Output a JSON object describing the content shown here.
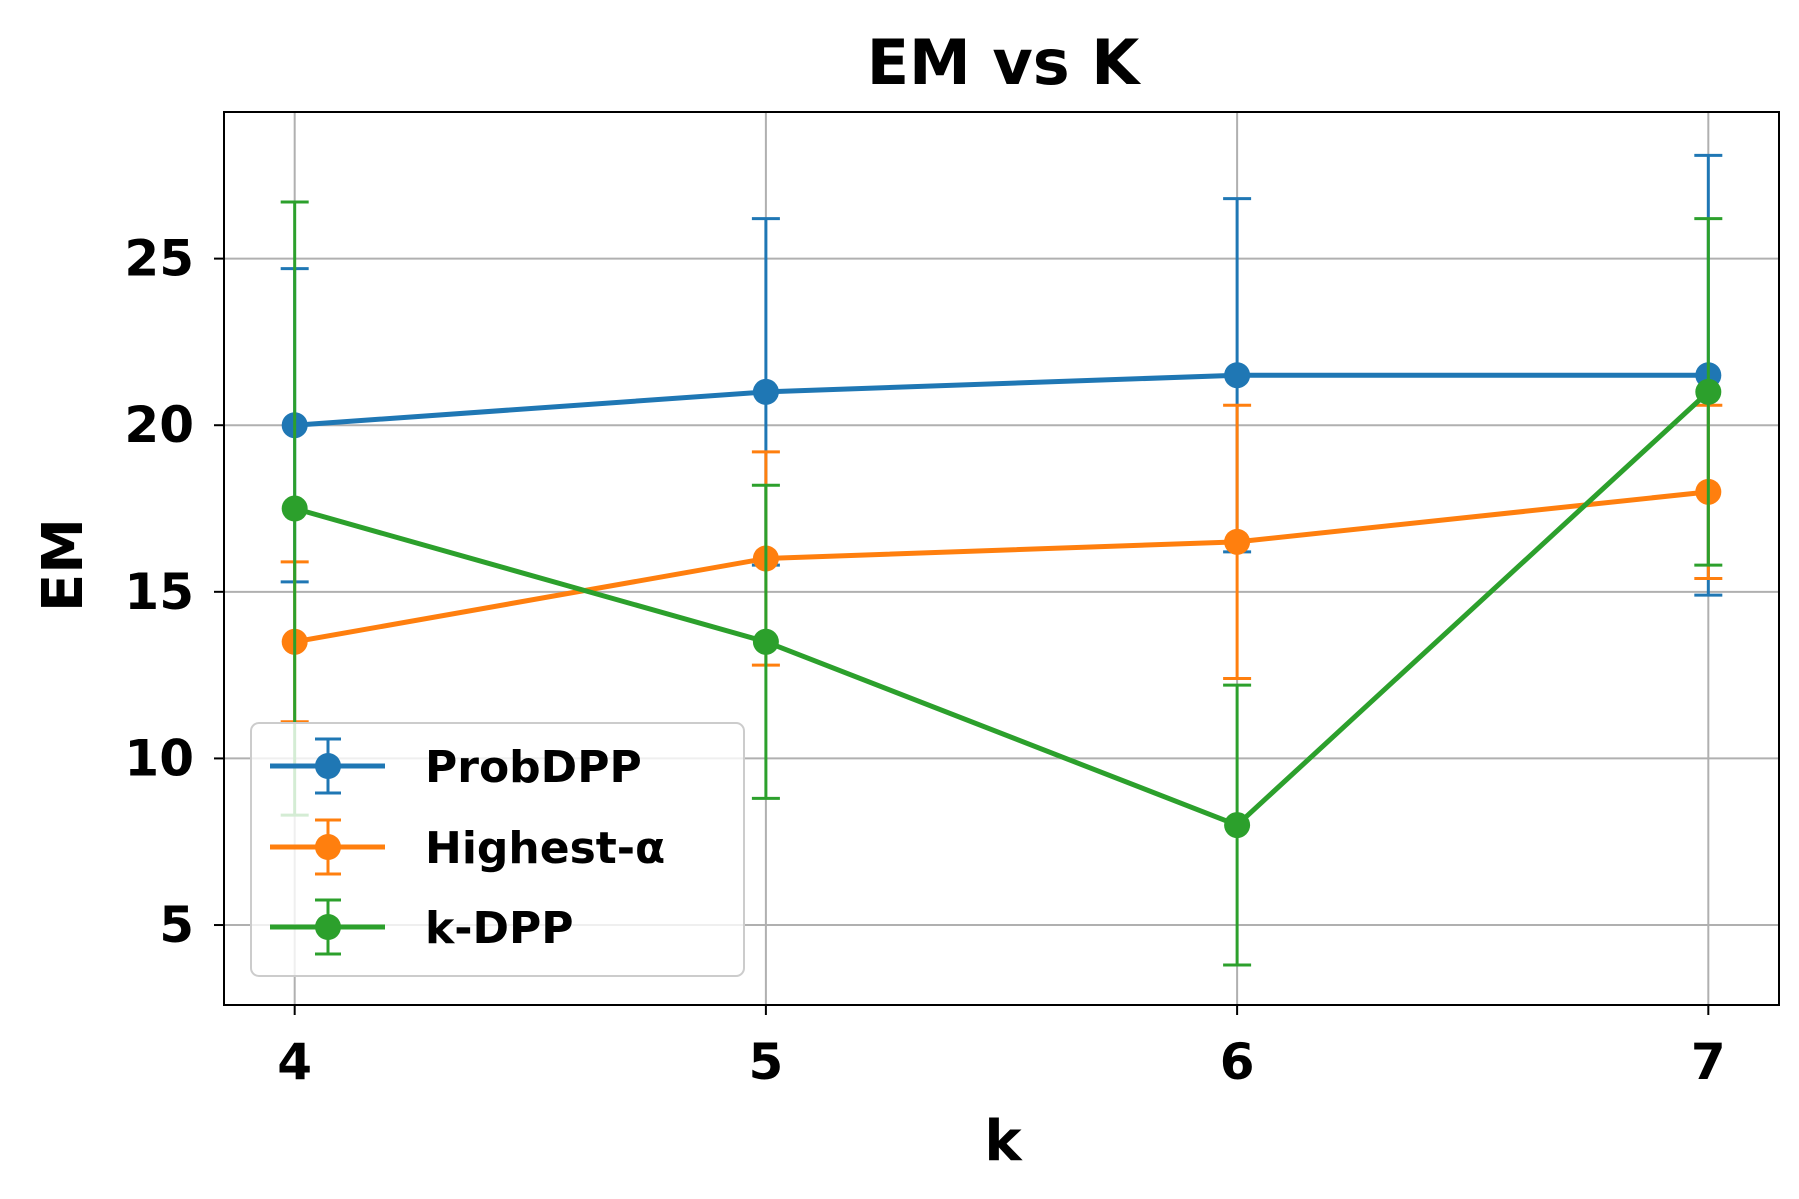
{
  "chart_data": {
    "type": "line",
    "title": "EM vs K",
    "xlabel": "k",
    "ylabel": "EM",
    "x": [
      4,
      5,
      6,
      7
    ],
    "xticks": [
      "4",
      "5",
      "6",
      "7"
    ],
    "yticks": [
      "5",
      "10",
      "15",
      "20",
      "25"
    ],
    "ytick_values": [
      5,
      10,
      15,
      20,
      25
    ],
    "xlim": [
      3.85,
      7.15
    ],
    "ylim": [
      2.6,
      29.4
    ],
    "grid": true,
    "legend_position": "lower-left",
    "series": [
      {
        "name": "ProbDPP",
        "color": "#1f77b4",
        "values": [
          20.0,
          21.0,
          21.5,
          21.5
        ],
        "err_low": [
          15.3,
          15.8,
          16.2,
          14.9
        ],
        "err_high": [
          24.7,
          26.2,
          26.8,
          28.1
        ]
      },
      {
        "name": "Highest-α",
        "color": "#ff7f0e",
        "values": [
          13.5,
          16.0,
          16.5,
          18.0
        ],
        "err_low": [
          11.1,
          12.8,
          12.4,
          15.4
        ],
        "err_high": [
          15.9,
          19.2,
          20.6,
          20.6
        ]
      },
      {
        "name": "k-DPP",
        "color": "#2ca02c",
        "values": [
          17.5,
          13.5,
          8.0,
          21.0
        ],
        "err_low": [
          8.3,
          8.8,
          3.8,
          15.8
        ],
        "err_high": [
          26.7,
          18.2,
          12.2,
          26.2
        ]
      }
    ]
  }
}
